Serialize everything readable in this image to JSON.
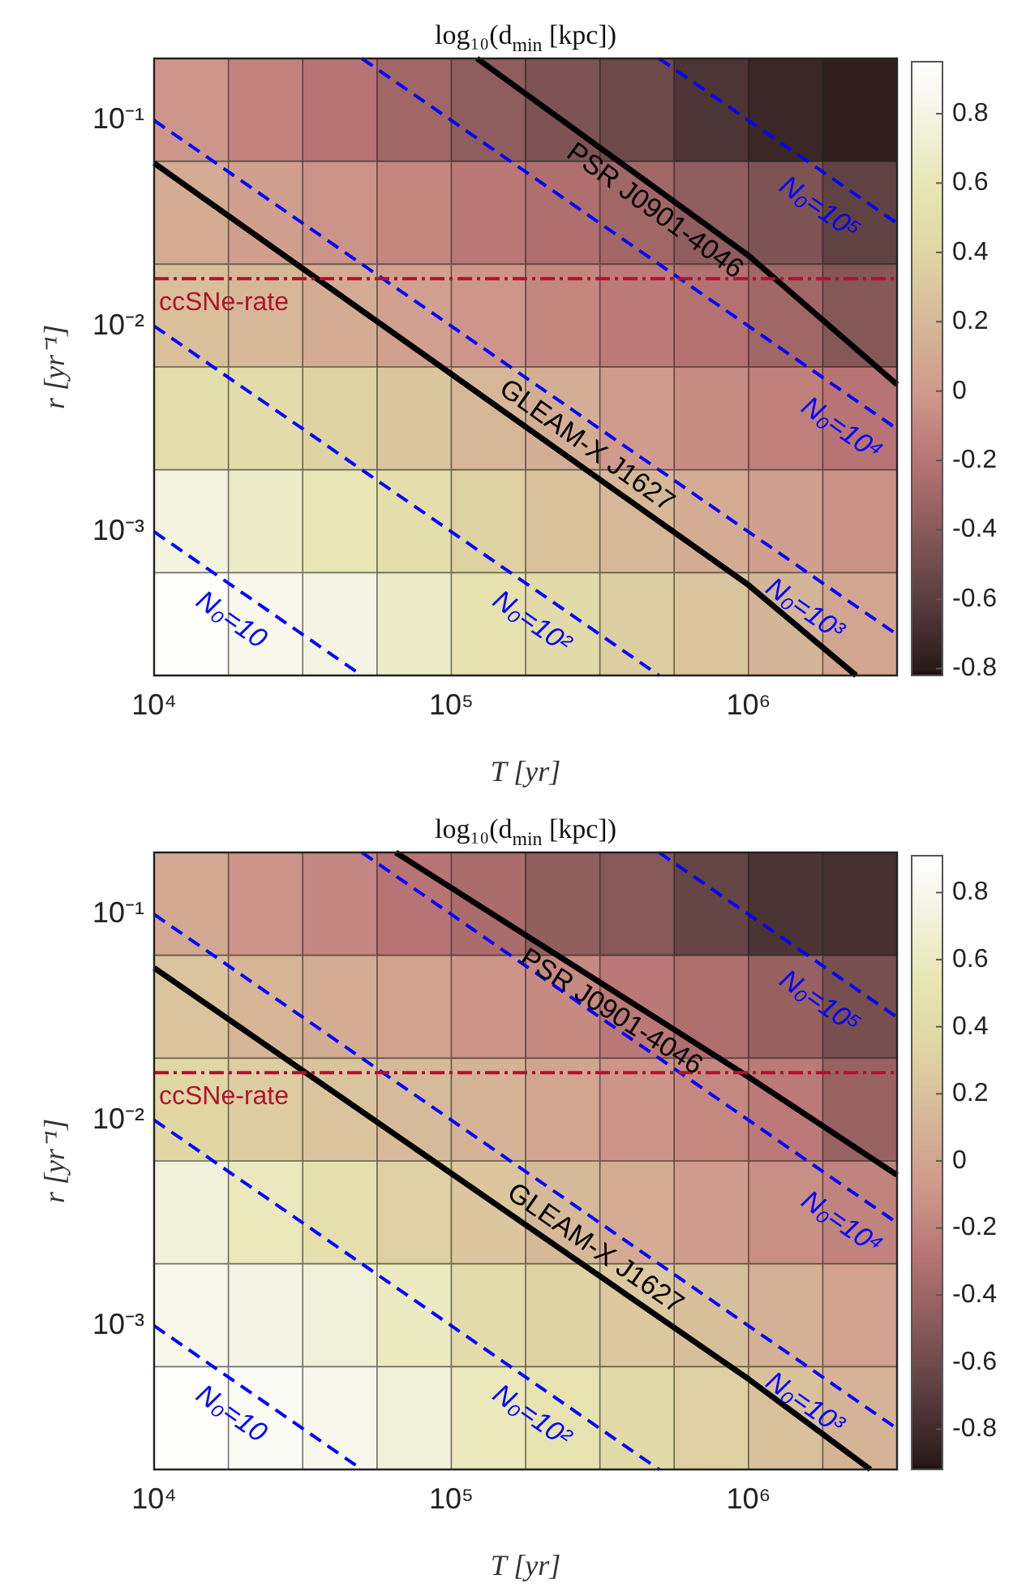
{
  "chart_data": [
    {
      "type": "heatmap",
      "title": "log₁₀(d$_{min}$ [kpc])",
      "xlabel": "T [yr]",
      "ylabel": "r [yr⁻¹]",
      "cells": [
        [
          -0.02,
          -0.12,
          -0.2,
          -0.3,
          -0.38,
          -0.45,
          -0.52,
          -0.65,
          -0.73,
          -0.77
        ],
        [
          0.12,
          0.03,
          -0.03,
          -0.1,
          -0.18,
          -0.24,
          -0.3,
          -0.38,
          -0.45,
          -0.57
        ],
        [
          0.25,
          0.2,
          0.12,
          0.04,
          -0.02,
          -0.1,
          -0.17,
          -0.22,
          -0.3,
          -0.42
        ],
        [
          0.5,
          0.47,
          0.38,
          0.3,
          0.2,
          0.13,
          0.0,
          -0.08,
          -0.14,
          -0.2
        ],
        [
          0.78,
          0.68,
          0.6,
          0.5,
          0.37,
          0.27,
          0.2,
          0.12,
          0.03,
          -0.05
        ],
        [
          0.93,
          0.85,
          0.8,
          0.68,
          0.55,
          0.45,
          0.35,
          0.28,
          0.18,
          0.07
        ]
      ],
      "clim": [
        -0.82,
        0.95
      ],
      "cticks": [
        -0.8,
        -0.6,
        -0.4,
        -0.2,
        0,
        0.2,
        0.4,
        0.6,
        0.8
      ],
      "log": "xy",
      "xlim": [
        10000,
        3160000
      ],
      "ylim": [
        0.0002,
        0.2
      ],
      "xticks": [
        {
          "value": 10000,
          "label": "10⁴"
        },
        {
          "value": 100000,
          "label": "10⁵"
        },
        {
          "value": 1000000,
          "label": "10⁶"
        }
      ],
      "yticks": [
        {
          "value": 0.001,
          "label": "10⁻³"
        },
        {
          "value": 0.01,
          "label": "10⁻²"
        },
        {
          "value": 0.1,
          "label": "10⁻¹"
        }
      ],
      "series": [
        {
          "type": "line",
          "name": "N₀=10",
          "color": "#0000ff",
          "line_style": "dashed",
          "x": [
            10000,
            50000
          ],
          "values": [
            0.001,
            0.0002
          ]
        },
        {
          "type": "line",
          "name": "N₀=10²",
          "color": "#0000ff",
          "line_style": "dashed",
          "x": [
            10000,
            500000
          ],
          "values": [
            0.01,
            0.0002
          ]
        },
        {
          "type": "line",
          "name": "N₀=10³",
          "color": "#0000ff",
          "line_style": "dashed",
          "x": [
            10000,
            3160000
          ],
          "values": [
            0.1,
            0.000316
          ]
        },
        {
          "type": "line",
          "name": "N₀=10⁴",
          "color": "#0000ff",
          "line_style": "dashed",
          "x": [
            50000,
            3160000
          ],
          "values": [
            0.2,
            0.00316
          ]
        },
        {
          "type": "line",
          "name": "N₀=10⁵",
          "color": "#0000ff",
          "line_style": "dashed",
          "x": [
            500000,
            3160000
          ],
          "values": [
            0.2,
            0.0316
          ]
        },
        {
          "type": "line",
          "name": "GLEAM-X J1627",
          "color": "#000000",
          "line_style": "solid",
          "x": [
            10000,
            1000000,
            2300000
          ],
          "values": [
            0.062,
            0.00055,
            0.0002
          ]
        },
        {
          "type": "line",
          "name": "PSR J0901-4046",
          "color": "#000000",
          "line_style": "solid",
          "x": [
            122000,
            1000000,
            3160000
          ],
          "values": [
            0.2,
            0.022,
            0.0052
          ]
        }
      ],
      "ref_lines": [
        {
          "axis": "y",
          "value": 0.017,
          "label": "ccSNe-rate",
          "color": "#b0122e",
          "line_style": "dashdot"
        }
      ],
      "legend": false
    },
    {
      "type": "heatmap",
      "title": "log₁₀(d$_{min}$ [kpc])",
      "xlabel": "T [yr]",
      "ylabel": "r [yr⁻¹]",
      "cells": [
        [
          0.03,
          -0.1,
          -0.18,
          -0.28,
          -0.34,
          -0.45,
          -0.5,
          -0.65,
          -0.75,
          -0.78
        ],
        [
          0.22,
          0.12,
          0.05,
          -0.02,
          -0.1,
          -0.16,
          -0.26,
          -0.33,
          -0.43,
          -0.57
        ],
        [
          0.35,
          0.28,
          0.22,
          0.15,
          0.1,
          0.0,
          -0.1,
          -0.17,
          -0.25,
          -0.42
        ],
        [
          0.72,
          0.58,
          0.45,
          0.3,
          0.23,
          0.14,
          0.05,
          -0.06,
          -0.13,
          -0.2
        ],
        [
          0.8,
          0.76,
          0.7,
          0.6,
          0.42,
          0.32,
          0.25,
          0.18,
          0.08,
          -0.02
        ],
        [
          0.9,
          0.85,
          0.8,
          0.72,
          0.58,
          0.5,
          0.4,
          0.3,
          0.2,
          0.1
        ]
      ],
      "clim": [
        -0.92,
        0.91
      ],
      "cticks": [
        -0.8,
        -0.6,
        -0.4,
        -0.2,
        0,
        0.2,
        0.4,
        0.6,
        0.8
      ],
      "log": "xy",
      "xlim": [
        10000,
        3160000
      ],
      "ylim": [
        0.0002,
        0.2
      ],
      "xticks": [
        {
          "value": 10000,
          "label": "10⁴"
        },
        {
          "value": 100000,
          "label": "10⁵"
        },
        {
          "value": 1000000,
          "label": "10⁶"
        }
      ],
      "yticks": [
        {
          "value": 0.001,
          "label": "10⁻³"
        },
        {
          "value": 0.01,
          "label": "10⁻²"
        },
        {
          "value": 0.1,
          "label": "10⁻¹"
        }
      ],
      "series": [
        {
          "type": "line",
          "name": "N₀=10",
          "color": "#0000ff",
          "line_style": "dashed",
          "x": [
            10000,
            50000
          ],
          "values": [
            0.001,
            0.0002
          ]
        },
        {
          "type": "line",
          "name": "N₀=10²",
          "color": "#0000ff",
          "line_style": "dashed",
          "x": [
            10000,
            500000
          ],
          "values": [
            0.01,
            0.0002
          ]
        },
        {
          "type": "line",
          "name": "N₀=10³",
          "color": "#0000ff",
          "line_style": "dashed",
          "x": [
            10000,
            3160000
          ],
          "values": [
            0.1,
            0.000316
          ]
        },
        {
          "type": "line",
          "name": "N₀=10⁴",
          "color": "#0000ff",
          "line_style": "dashed",
          "x": [
            50000,
            3160000
          ],
          "values": [
            0.2,
            0.00316
          ]
        },
        {
          "type": "line",
          "name": "N₀=10⁵",
          "color": "#0000ff",
          "line_style": "dashed",
          "x": [
            500000,
            3160000
          ],
          "values": [
            0.2,
            0.0316
          ]
        },
        {
          "type": "line",
          "name": "GLEAM-X J1627",
          "color": "#000000",
          "line_style": "solid",
          "x": [
            10000,
            1000000,
            2570000
          ],
          "values": [
            0.055,
            0.00055,
            0.0002
          ]
        },
        {
          "type": "line",
          "name": "PSR J0901-4046",
          "color": "#000000",
          "line_style": "solid",
          "x": [
            65000,
            1000000,
            3160000
          ],
          "values": [
            0.2,
            0.0162,
            0.0054
          ]
        }
      ],
      "ref_lines": [
        {
          "axis": "y",
          "value": 0.017,
          "label": "ccSNe-rate",
          "color": "#b0122e",
          "line_style": "dashdot"
        }
      ],
      "legend": false
    }
  ]
}
